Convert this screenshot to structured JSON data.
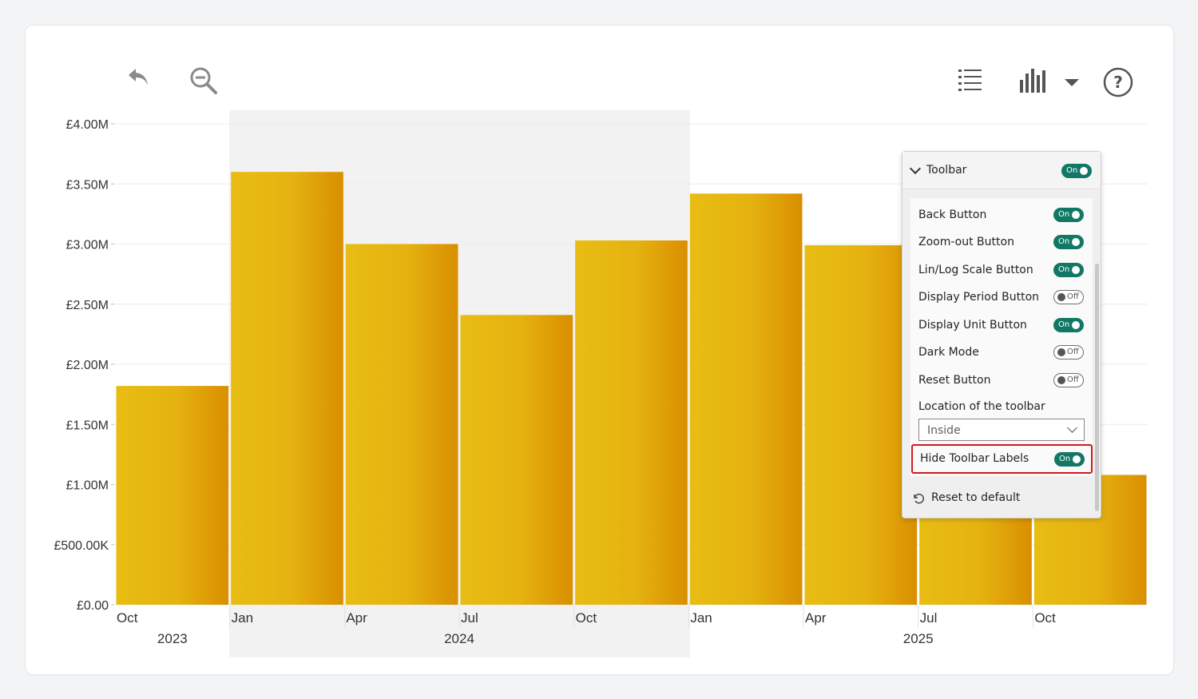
{
  "toolbar_icons": {
    "back": "undo-arrow-icon",
    "zoom_out": "zoom-out-icon",
    "list": "list-icon",
    "chart_type": "bar-chart-icon",
    "chart_dropdown": "caret-down-icon",
    "help": "help-icon"
  },
  "chart_data": {
    "type": "bar",
    "x": [
      "2023-10",
      "2024-01",
      "2024-04",
      "2024-07",
      "2024-10",
      "2025-01",
      "2025-04",
      "2025-07",
      "2025-10"
    ],
    "values": [
      1820000,
      3600000,
      3000000,
      2410000,
      3030000,
      3420000,
      2990000,
      2470000,
      1080000
    ],
    "ylim": [
      0,
      4000000
    ],
    "y_ticks": [
      "£0.00",
      "£500.00K",
      "£1.00M",
      "£1.50M",
      "£2.00M",
      "£2.50M",
      "£3.00M",
      "£3.50M",
      "£4.00M"
    ],
    "x_tick_labels": [
      "Oct",
      "Jan",
      "Apr",
      "Jul",
      "Oct",
      "Jan",
      "Apr",
      "Jul",
      "Oct"
    ],
    "year_labels": [
      "2023",
      "2024",
      "2025"
    ],
    "bar_color": "#e8b913",
    "bar_shade_color": "#d98f00",
    "grid": true
  },
  "panel": {
    "title": "Toolbar",
    "title_toggle": "On",
    "rows": [
      {
        "label": "Back Button",
        "state": "On"
      },
      {
        "label": "Zoom-out Button",
        "state": "On"
      },
      {
        "label": "Lin/Log Scale Button",
        "state": "On"
      },
      {
        "label": "Display Period Button",
        "state": "Off"
      },
      {
        "label": "Display Unit Button",
        "state": "On"
      },
      {
        "label": "Dark Mode",
        "state": "Off"
      },
      {
        "label": "Reset Button",
        "state": "Off"
      }
    ],
    "location_label": "Location of the toolbar",
    "location_value": "Inside",
    "hide_labels": {
      "label": "Hide Toolbar Labels",
      "state": "On"
    },
    "reset_label": "Reset to default",
    "toggle_on_color": "#117865",
    "highlight_color": "#d01c1c"
  }
}
